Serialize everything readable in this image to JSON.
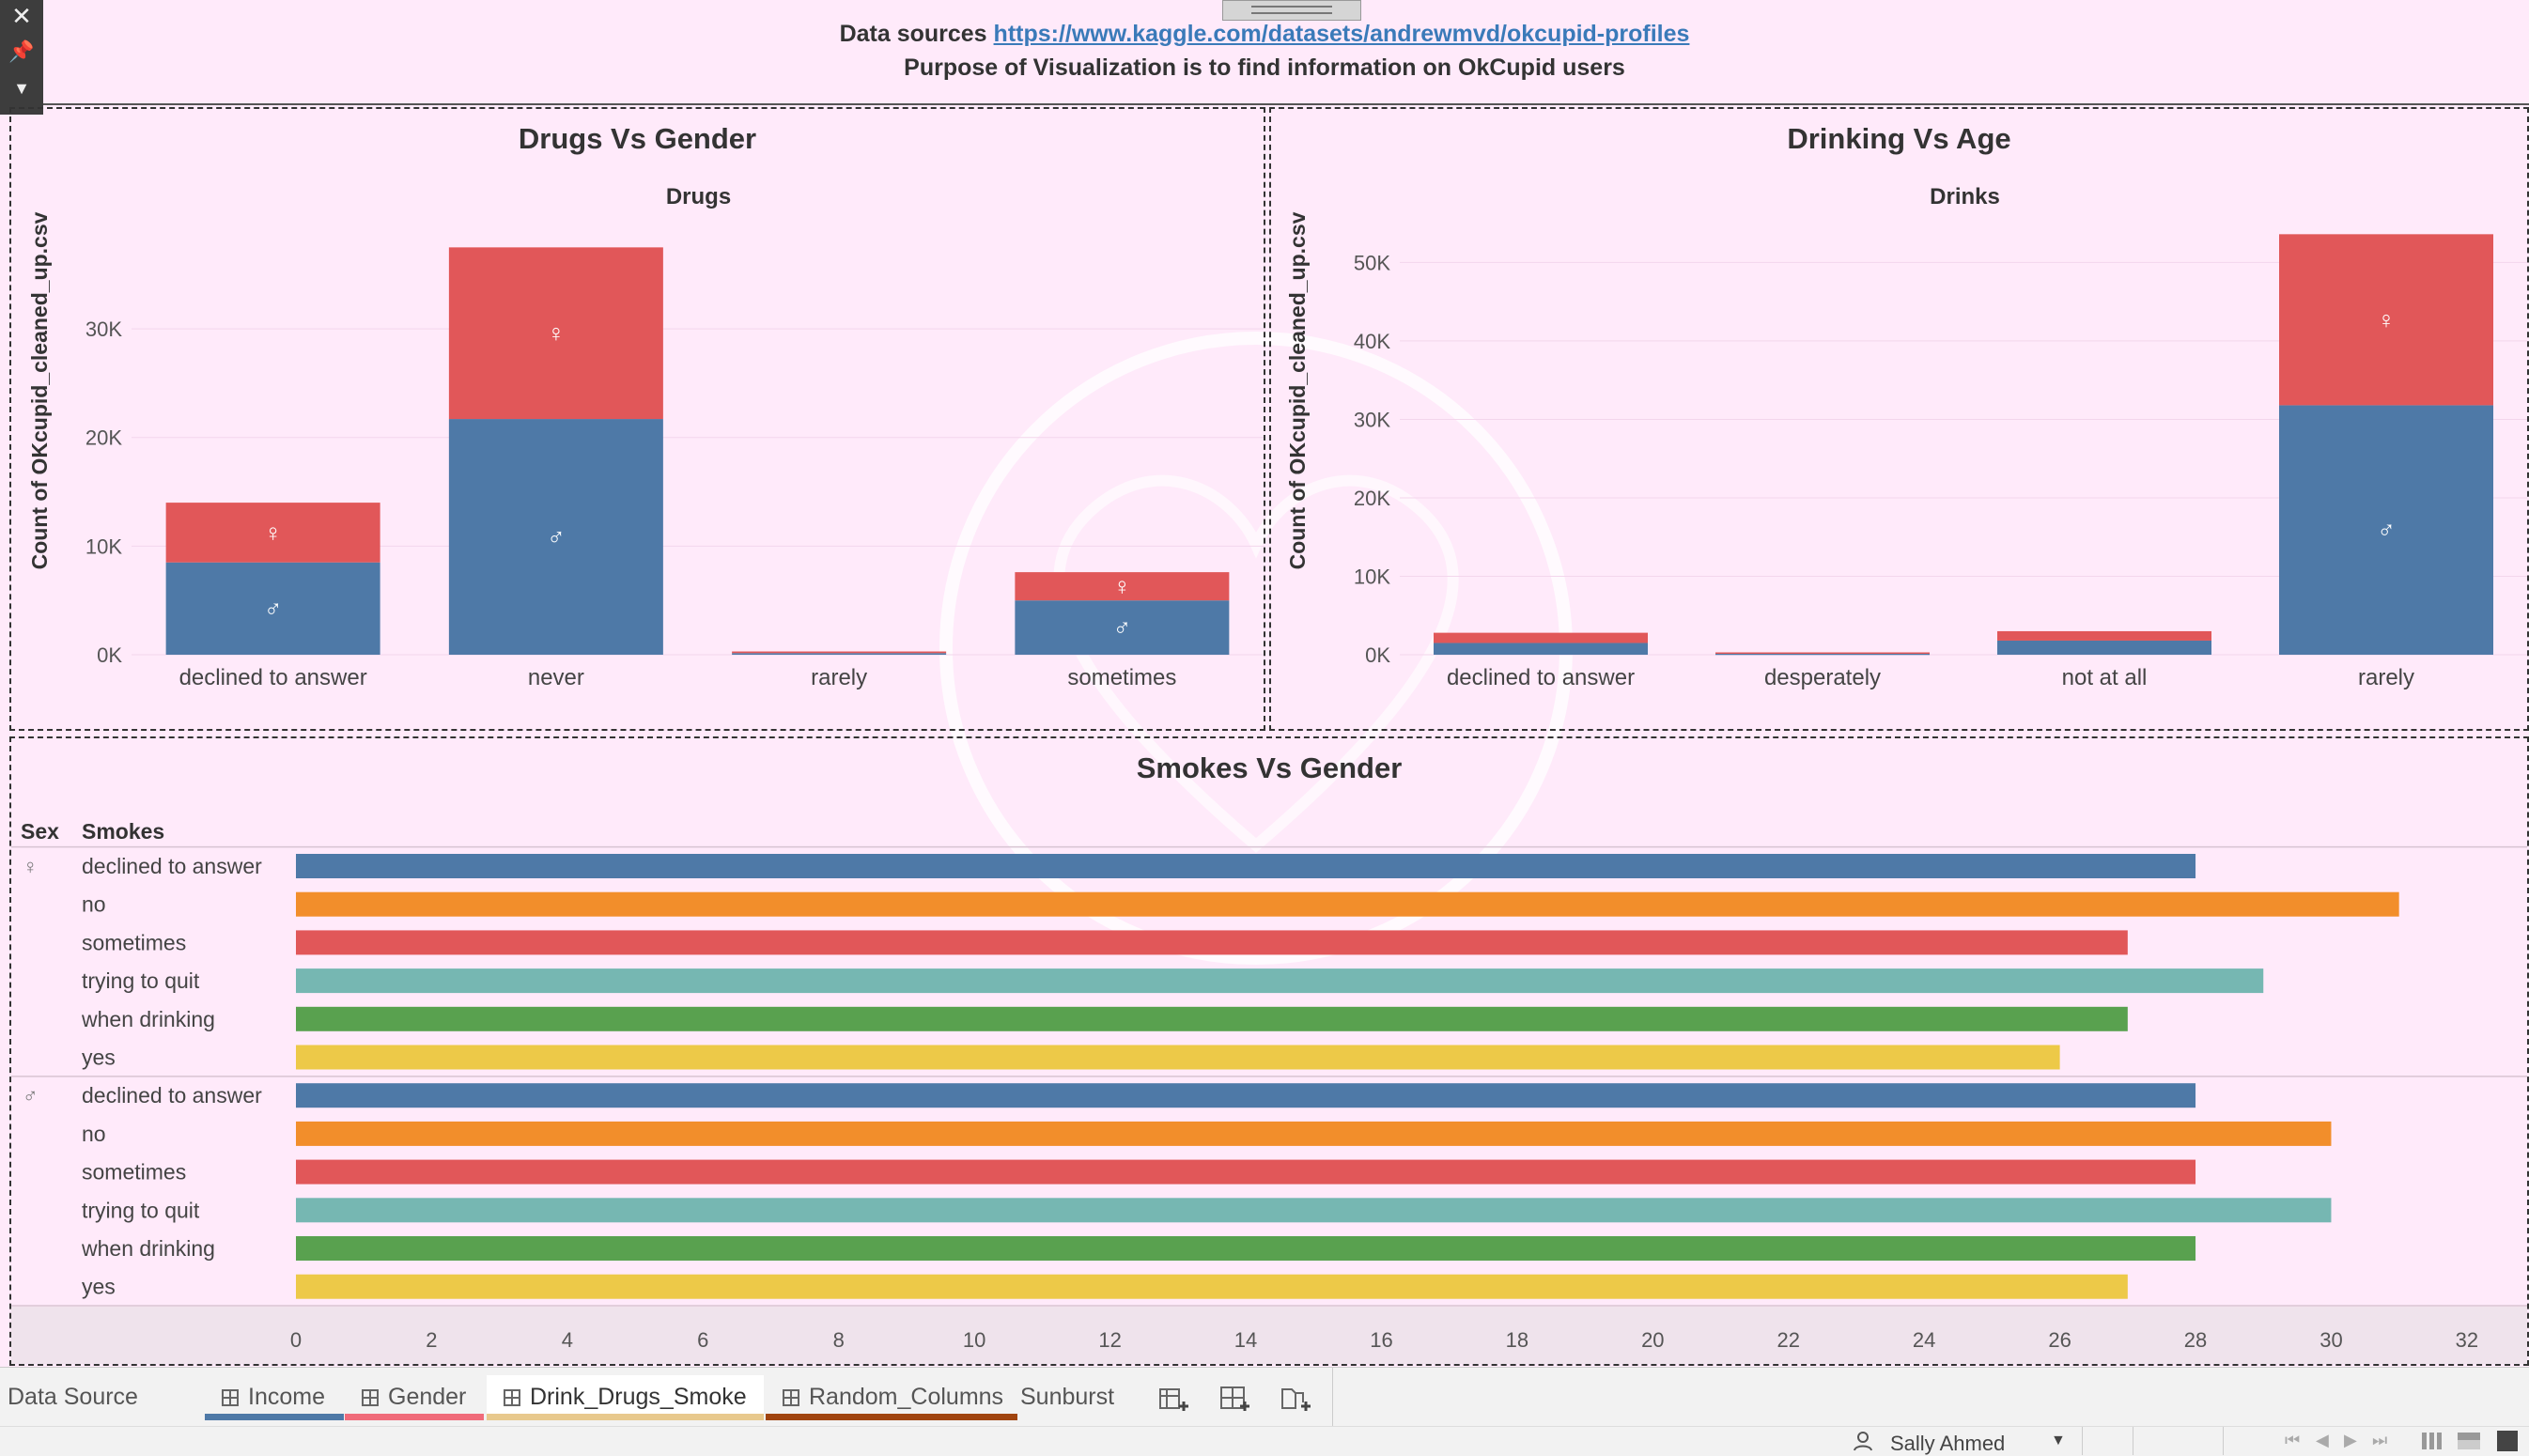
{
  "header": {
    "data_sources_label": "Data sources",
    "data_sources_url": "https://www.kaggle.com/datasets/andrewmvd/okcupid-profiles",
    "purpose": "Purpose of Visualization  is to find information on OkCupid users"
  },
  "colors": {
    "background": "#ffeafa",
    "male": "#4e79a7",
    "female": "#e15759",
    "smokes": [
      "#4e79a7",
      "#f28e2b",
      "#e15759",
      "#76b7b2",
      "#59a14f",
      "#edc948"
    ]
  },
  "panels": {
    "drugs": {
      "title": "Drugs Vs Gender",
      "column_header": "Drugs",
      "y_axis_label": "Count of OKcupid_cleaned_up.csv"
    },
    "drinks": {
      "title": "Drinking Vs Age",
      "column_header": "Drinks",
      "y_axis_label": "Count of OKcupid_cleaned_up.csv"
    },
    "smokes": {
      "title": "Smokes Vs Gender",
      "row_header_sex": "Sex",
      "row_header_smokes": "Smokes"
    }
  },
  "chart_data": [
    {
      "type": "bar",
      "title": "Drugs Vs Gender",
      "column_header": "Drugs",
      "ylabel": "Count of OKcupid_cleaned_up.csv",
      "categories": [
        "declined to answer",
        "never",
        "rarely",
        "sometimes"
      ],
      "series": [
        {
          "symbol": "♂",
          "color": "#4e79a7",
          "values": [
            8500,
            21700,
            150,
            5000
          ]
        },
        {
          "symbol": "♀",
          "color": "#e15759",
          "values": [
            5500,
            15800,
            150,
            2600
          ]
        }
      ],
      "stacked": true,
      "yticks": [
        0,
        10000,
        20000,
        30000
      ],
      "ytick_labels": [
        "0K",
        "10K",
        "20K",
        "30K"
      ],
      "ylim": [
        0,
        39000
      ]
    },
    {
      "type": "bar",
      "title": "Drinking Vs Age",
      "column_header": "Drinks",
      "ylabel": "Count of OKcupid_cleaned_up.csv",
      "categories": [
        "declined to answer",
        "desperately",
        "not at all",
        "rarely"
      ],
      "series": [
        {
          "symbol": "♂",
          "color": "#4e79a7",
          "values": [
            1500,
            150,
            1800,
            31800
          ]
        },
        {
          "symbol": "♀",
          "color": "#e15759",
          "values": [
            1300,
            150,
            1200,
            21800
          ]
        }
      ],
      "stacked": true,
      "yticks": [
        0,
        10000,
        20000,
        30000,
        40000,
        50000
      ],
      "ytick_labels": [
        "0K",
        "10K",
        "20K",
        "30K",
        "40K",
        "50K"
      ],
      "ylim": [
        0,
        54000
      ]
    },
    {
      "type": "bar",
      "orientation": "horizontal",
      "title": "Smokes Vs Gender",
      "groups": [
        {
          "sex": "♀",
          "categories": [
            "declined to answer",
            "no",
            "sometimes",
            "trying to quit",
            "when drinking",
            "yes"
          ],
          "values": [
            28,
            31,
            27,
            29,
            27,
            26
          ]
        },
        {
          "sex": "♂",
          "categories": [
            "declined to answer",
            "no",
            "sometimes",
            "trying to quit",
            "when drinking",
            "yes"
          ],
          "values": [
            28,
            30,
            28,
            30,
            28,
            27
          ]
        }
      ],
      "xticks": [
        0,
        2,
        4,
        6,
        8,
        10,
        12,
        14,
        16,
        18,
        20,
        22,
        24,
        26,
        28,
        30,
        32
      ],
      "xlim": [
        0,
        32.5
      ]
    }
  ],
  "tabs": [
    {
      "label": "Data Source",
      "icon": "",
      "underline": ""
    },
    {
      "label": "Income",
      "icon": "grid-icon",
      "underline": "#4e79a7"
    },
    {
      "label": "Gender",
      "icon": "grid-icon",
      "underline": "#f06b7a"
    },
    {
      "label": "Drink_Drugs_Smoke",
      "icon": "grid-icon",
      "underline": "#e8c98d",
      "active": true
    },
    {
      "label": "Random_Columns",
      "icon": "grid-icon",
      "underline": "#a0440f"
    },
    {
      "label": "Sunburst",
      "icon": "",
      "underline": ""
    }
  ],
  "status": {
    "user": "Sally Ahmed"
  },
  "icons": {
    "close": "close-icon",
    "pin": "pin-icon",
    "menu": "dropdown-icon",
    "new_sheet": "new-worksheet-icon",
    "new_dashboard": "new-dashboard-icon",
    "new_story": "new-story-icon",
    "user": "user-icon"
  }
}
